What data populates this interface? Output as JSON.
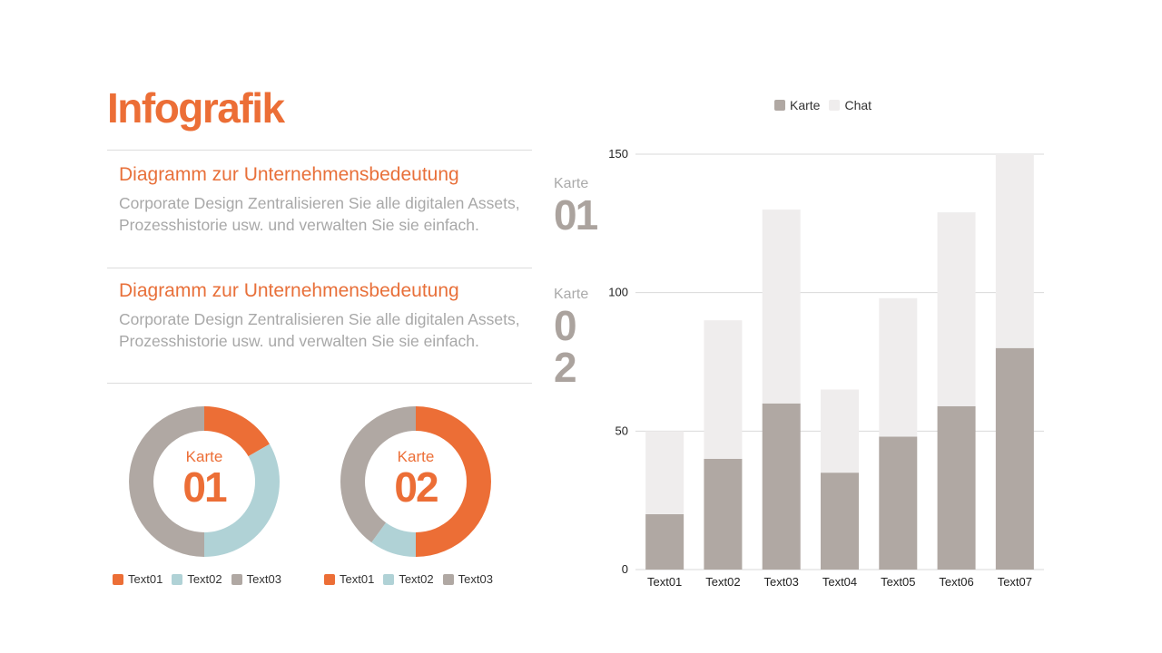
{
  "header": {
    "title": "Infografik"
  },
  "sections": [
    {
      "title": "Diagramm zur Unternehmensbedeutung",
      "body_line1": "Corporate Design Zentralisieren Sie alle digitalen Assets,",
      "body_line2": "Prozesshistorie usw. und verwalten Sie sie einfach.",
      "card_label": "Karte",
      "card_number": "01"
    },
    {
      "title": "Diagramm zur Unternehmensbedeutung",
      "body_line1": "Corporate Design Zentralisieren Sie alle digitalen Assets,",
      "body_line2": "Prozesshistorie usw. und verwalten Sie sie einfach.",
      "card_label": "Karte",
      "card_number": "02"
    }
  ],
  "colors": {
    "accent": "#ec6e36",
    "text01": "#ec6e36",
    "text02": "#b0d2d6",
    "text03": "#b0a8a3",
    "karte": "#b0a8a3",
    "chat": "#efeded"
  },
  "chart_data": [
    {
      "type": "pie",
      "donut": true,
      "center_label": "Karte",
      "center_number": "01",
      "categories": [
        "Text01",
        "Text02",
        "Text03"
      ],
      "values": [
        16.7,
        33.3,
        50
      ]
    },
    {
      "type": "pie",
      "donut": true,
      "center_label": "Karte",
      "center_number": "02",
      "categories": [
        "Text01",
        "Text02",
        "Text03"
      ],
      "values": [
        50,
        10,
        40
      ]
    },
    {
      "type": "bar",
      "stacked": true,
      "categories": [
        "Text01",
        "Text02",
        "Text03",
        "Text04",
        "Text05",
        "Text06",
        "Text07"
      ],
      "series": [
        {
          "name": "Karte",
          "values": [
            20,
            40,
            60,
            35,
            48,
            59,
            80
          ]
        },
        {
          "name": "Chat",
          "values": [
            30,
            50,
            70,
            30,
            50,
            70,
            70
          ]
        }
      ],
      "ylim": [
        0,
        150
      ],
      "yticks": [
        0,
        50,
        100,
        150
      ],
      "grid": true,
      "legend": "top"
    }
  ]
}
